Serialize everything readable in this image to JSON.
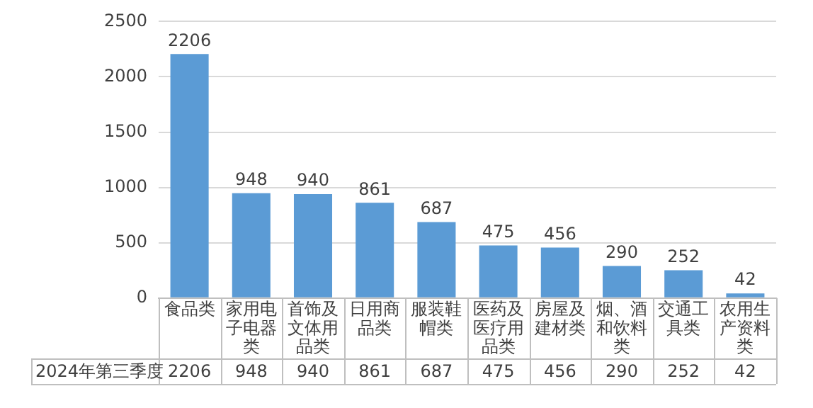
{
  "chart_data": {
    "type": "bar",
    "categories": [
      "食品类",
      "家用电子电器类",
      "首饰及文体用品类",
      "日用商品类",
      "服装鞋帽类",
      "医药及医疗用品类",
      "房屋及建材类",
      "烟、酒和饮料类",
      "交通工具类",
      "农用生产资料类"
    ],
    "series": [
      {
        "name": "2024年第三季度",
        "color": "#5b9bd5",
        "values": [
          2206,
          948,
          940,
          861,
          687,
          475,
          456,
          290,
          252,
          42
        ],
        "value_labels": [
          "2206",
          "948",
          "940",
          "861",
          "687",
          "475",
          "456",
          "290",
          "252",
          "42"
        ]
      }
    ],
    "annotations": [
      "2206",
      "948",
      "940",
      "861",
      "687",
      "475",
      "456",
      "290",
      "252",
      "42"
    ],
    "ylim": [
      0,
      2500
    ],
    "yticks": [
      0,
      500,
      1000,
      1500,
      2000,
      2500
    ],
    "grid": "y",
    "data_labels": true,
    "legend": false
  }
}
